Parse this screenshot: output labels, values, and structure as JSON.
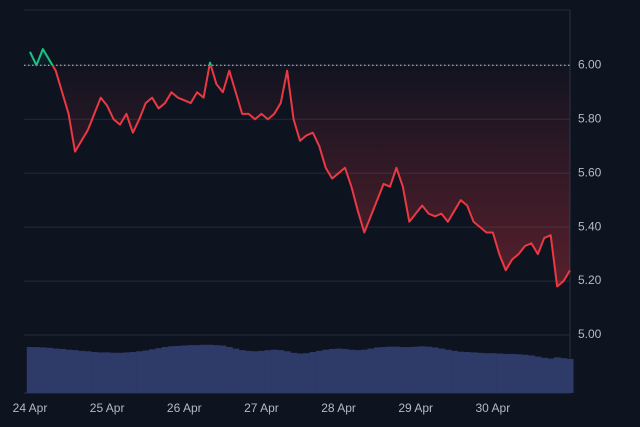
{
  "chart_data": {
    "type": "line",
    "categories": [
      "24 Apr",
      null,
      null,
      null,
      null,
      null,
      null,
      null,
      null,
      null,
      null,
      null,
      "25 Apr",
      null,
      null,
      null,
      null,
      null,
      null,
      null,
      null,
      null,
      null,
      null,
      "26 Apr",
      null,
      null,
      null,
      null,
      null,
      null,
      null,
      null,
      null,
      null,
      null,
      "27 Apr",
      null,
      null,
      null,
      null,
      null,
      null,
      null,
      null,
      null,
      null,
      null,
      "28 Apr",
      null,
      null,
      null,
      null,
      null,
      null,
      null,
      null,
      null,
      null,
      null,
      "29 Apr",
      null,
      null,
      null,
      null,
      null,
      null,
      null,
      null,
      null,
      null,
      null,
      "30 Apr",
      null,
      null,
      null,
      null,
      null,
      null,
      null,
      null,
      null,
      null,
      null,
      null
    ],
    "series": [
      {
        "color_up": "#16c784",
        "color_down": "#ea3943",
        "values": [
          6.05,
          6.0,
          6.06,
          6.02,
          5.98,
          5.9,
          5.82,
          5.68,
          5.72,
          5.76,
          5.82,
          5.88,
          5.85,
          5.8,
          5.78,
          5.82,
          5.75,
          5.8,
          5.86,
          5.88,
          5.84,
          5.86,
          5.9,
          5.88,
          5.87,
          5.86,
          5.9,
          5.88,
          6.01,
          5.93,
          5.9,
          5.98,
          5.9,
          5.82,
          5.82,
          5.8,
          5.82,
          5.8,
          5.82,
          5.86,
          5.98,
          5.8,
          5.72,
          5.74,
          5.75,
          5.7,
          5.62,
          5.58,
          5.6,
          5.62,
          5.55,
          5.46,
          5.38,
          5.44,
          5.5,
          5.56,
          5.55,
          5.62,
          5.55,
          5.42,
          5.45,
          5.48,
          5.45,
          5.44,
          5.45,
          5.42,
          5.46,
          5.5,
          5.48,
          5.42,
          5.4,
          5.38,
          5.38,
          5.3,
          5.24,
          5.28,
          5.3,
          5.33,
          5.34,
          5.3,
          5.36,
          5.37,
          5.18,
          5.2,
          5.24
        ]
      },
      {
        "type": "bar",
        "axis": "y2",
        "color": "#2e3a68",
        "values": [
          12.0,
          12.0,
          11.9,
          11.8,
          11.6,
          11.5,
          11.3,
          11.2,
          11.0,
          10.9,
          10.7,
          10.6,
          10.6,
          10.5,
          10.5,
          10.6,
          10.7,
          10.9,
          11.1,
          11.4,
          11.7,
          12.0,
          12.2,
          12.3,
          12.4,
          12.5,
          12.5,
          12.6,
          12.6,
          12.5,
          12.4,
          12.0,
          11.6,
          11.2,
          11.0,
          10.9,
          11.0,
          11.2,
          11.3,
          11.2,
          10.9,
          10.5,
          10.3,
          10.4,
          10.7,
          11.0,
          11.3,
          11.5,
          11.6,
          11.5,
          11.3,
          11.2,
          11.3,
          11.6,
          11.9,
          12.0,
          12.1,
          12.1,
          12.0,
          12.0,
          12.1,
          12.2,
          12.1,
          11.9,
          11.6,
          11.3,
          11.0,
          10.8,
          10.7,
          10.6,
          10.5,
          10.4,
          10.4,
          10.3,
          10.2,
          10.2,
          10.1,
          10.0,
          9.8,
          9.5,
          9.2,
          9.0,
          9.3,
          9.1,
          8.9
        ]
      }
    ],
    "ylim": [
      4.785,
      6.205
    ],
    "yticks": [
      {
        "value": 5,
        "label": "5.00"
      },
      {
        "value": 5.2,
        "label": "5.20"
      },
      {
        "value": 5.4,
        "label": "5.40"
      },
      {
        "value": 5.6,
        "label": "5.60"
      },
      {
        "value": 5.8,
        "label": "5.80"
      },
      {
        "value": 6,
        "label": "6.00"
      }
    ],
    "y2lim": [
      0,
      100
    ],
    "baseline": 6,
    "grid": true
  }
}
